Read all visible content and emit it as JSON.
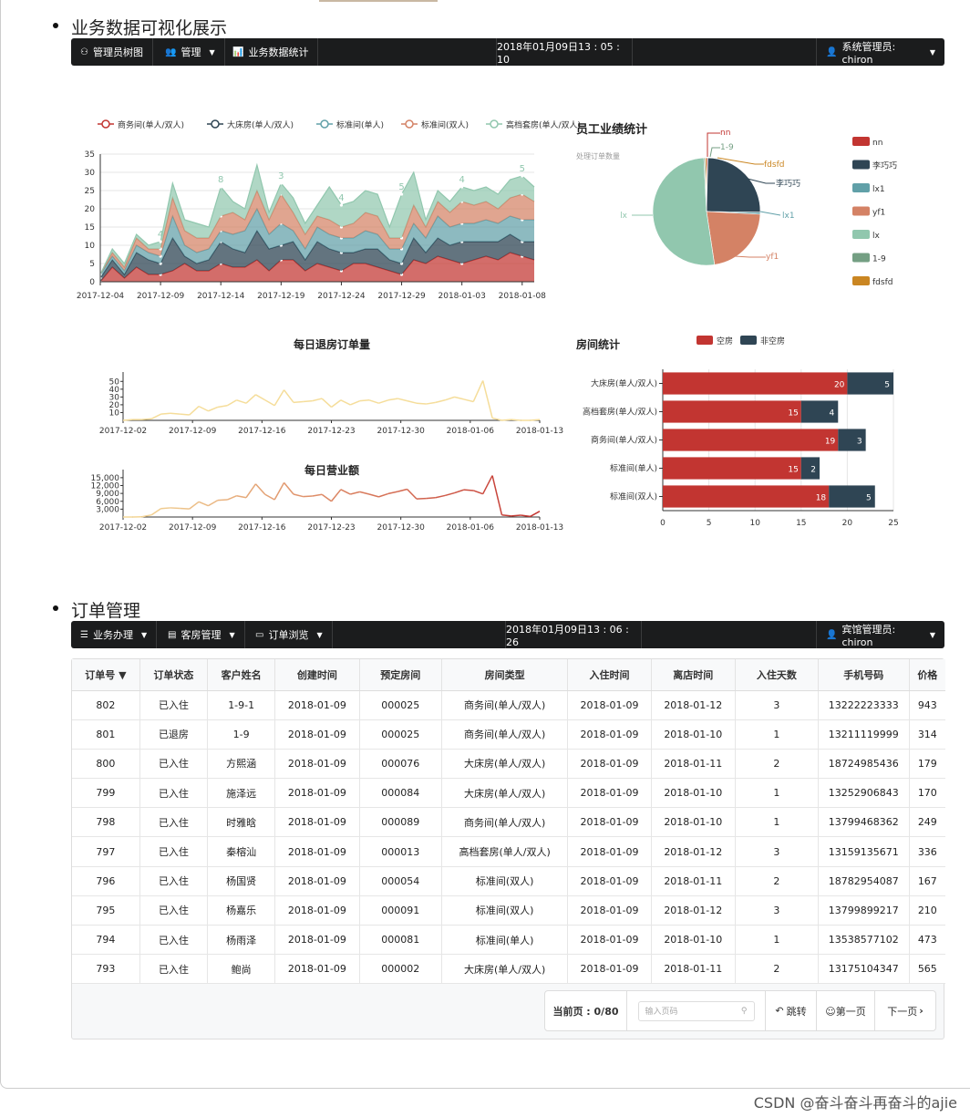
{
  "section1": {
    "title": "业务数据可视化展示"
  },
  "nav1": {
    "items": [
      "管理员树图",
      "管理",
      "业务数据统计"
    ],
    "datetime": "2018年01月09日13 : 05 : 10",
    "user": "系统管理员: chiron"
  },
  "section2": {
    "title": "订单管理"
  },
  "nav2": {
    "items": [
      "业务办理",
      "客房管理",
      "订单浏览"
    ],
    "datetime": "2018年01月09日13 : 06 : 26",
    "user": "宾馆管理员: chiron"
  },
  "colors": {
    "red": "#c23531",
    "navy": "#2f4554",
    "teal": "#61a0a8",
    "salmon": "#d48265",
    "mint": "#91c7ae",
    "green": "#749f83",
    "orange": "#ca8622"
  },
  "chart_data": [
    {
      "type": "area",
      "title": "",
      "x": [
        "2017-12-04",
        "2017-12-05",
        "2017-12-06",
        "2017-12-07",
        "2017-12-08",
        "2017-12-09",
        "2017-12-10",
        "2017-12-11",
        "2017-12-12",
        "2017-12-13",
        "2017-12-14",
        "2017-12-15",
        "2017-12-16",
        "2017-12-17",
        "2017-12-18",
        "2017-12-19",
        "2017-12-20",
        "2017-12-21",
        "2017-12-22",
        "2017-12-23",
        "2017-12-24",
        "2017-12-25",
        "2017-12-26",
        "2017-12-27",
        "2017-12-28",
        "2017-12-29",
        "2017-12-30",
        "2017-12-31",
        "2018-01-01",
        "2018-01-02",
        "2018-01-03",
        "2018-01-04",
        "2018-01-05",
        "2018-01-06",
        "2018-01-07",
        "2018-01-08",
        "2018-01-09"
      ],
      "xticks": [
        "2017-12-04",
        "2017-12-09",
        "2017-12-14",
        "2017-12-19",
        "2017-12-24",
        "2017-12-29",
        "2018-01-03",
        "2018-01-08"
      ],
      "ylim": [
        0,
        35
      ],
      "yticks": [
        "0",
        "5",
        "10",
        "15",
        "20",
        "25",
        "30",
        "35"
      ],
      "stacked": true,
      "series": [
        {
          "name": "商务间(单人/双人)",
          "values": [
            0,
            4,
            1,
            4,
            2,
            2,
            3,
            5,
            3,
            3,
            5,
            4,
            4,
            6,
            3,
            6,
            6,
            3,
            5,
            4,
            3,
            5,
            5,
            4,
            3,
            2,
            6,
            5,
            7,
            6,
            5,
            6,
            7,
            6,
            8,
            7,
            6
          ]
        },
        {
          "name": "大床房(单人/双人)",
          "values": [
            1,
            2,
            1,
            4,
            4,
            3,
            9,
            2,
            2,
            3,
            6,
            5,
            4,
            8,
            6,
            4,
            5,
            3,
            6,
            5,
            5,
            3,
            4,
            5,
            3,
            3,
            6,
            3,
            5,
            4,
            6,
            5,
            4,
            5,
            5,
            4,
            5
          ]
        },
        {
          "name": "标准间(单人)",
          "values": [
            1,
            1,
            1,
            2,
            2,
            2,
            6,
            3,
            3,
            3,
            3,
            4,
            6,
            6,
            4,
            6,
            3,
            3,
            4,
            4,
            4,
            4,
            5,
            4,
            3,
            4,
            4,
            4,
            6,
            5,
            5,
            5,
            6,
            5,
            5,
            6,
            6
          ]
        },
        {
          "name": "标准间(双人)",
          "values": [
            0,
            1,
            1,
            2,
            1,
            2,
            5,
            4,
            4,
            3,
            4,
            6,
            3,
            5,
            4,
            8,
            5,
            4,
            3,
            4,
            3,
            4,
            5,
            5,
            3,
            3,
            5,
            3,
            4,
            4,
            6,
            5,
            5,
            4,
            5,
            7,
            5
          ]
        },
        {
          "name": "高档套房(单人/双人)",
          "values": [
            0,
            1,
            1,
            1,
            1,
            2,
            4,
            3,
            4,
            3,
            8,
            3,
            3,
            7,
            2,
            3,
            4,
            3,
            3,
            9,
            6,
            6,
            6,
            6,
            3,
            12,
            9,
            2,
            3,
            3,
            4,
            4,
            4,
            4,
            5,
            5,
            4
          ]
        }
      ],
      "labels": [
        "4",
        "8",
        "3",
        "4",
        "5",
        "4",
        "5"
      ]
    },
    {
      "type": "pie",
      "title": "员工业绩统计",
      "subtitle": "处理订单数量",
      "slices": [
        {
          "name": "nn",
          "value": 0.4
        },
        {
          "name": "李巧巧",
          "value": 25
        },
        {
          "name": "lx1",
          "value": 0.6
        },
        {
          "name": "yf1",
          "value": 22
        },
        {
          "name": "lx",
          "value": 52
        },
        {
          "name": "1-9",
          "value": 0.4
        },
        {
          "name": "fdsfd",
          "value": 0.4
        }
      ]
    },
    {
      "type": "line",
      "title": "每日退房订单量",
      "xticks": [
        "2017-12-02",
        "2017-12-09",
        "2017-12-16",
        "2017-12-23",
        "2017-12-30",
        "2018-01-06",
        "2018-01-13"
      ],
      "yticks": [
        "10",
        "20",
        "30",
        "40",
        "50"
      ],
      "ylim": [
        0,
        55
      ],
      "values": [
        0,
        1,
        1,
        2,
        8,
        9,
        8,
        7,
        18,
        12,
        17,
        19,
        26,
        22,
        33,
        26,
        19,
        39,
        23,
        24,
        25,
        28,
        17,
        26,
        20,
        25,
        26,
        22,
        26,
        28,
        25,
        22,
        21,
        23,
        26,
        30,
        27,
        24,
        51,
        3,
        0,
        1,
        0,
        0,
        1
      ]
    },
    {
      "type": "line",
      "title": "每日营业额",
      "xticks": [
        "2017-12-02",
        "2017-12-09",
        "2017-12-16",
        "2017-12-23",
        "2017-12-30",
        "2018-01-06",
        "2018-01-13"
      ],
      "yticks": [
        "3,000",
        "6,000",
        "9,000",
        "12,000",
        "15,000"
      ],
      "ylim": [
        0,
        16000
      ],
      "values": [
        0,
        0,
        100,
        800,
        3200,
        3500,
        3300,
        3100,
        5800,
        4300,
        6400,
        6600,
        8100,
        7400,
        12600,
        8600,
        6600,
        13100,
        8700,
        7800,
        8000,
        8600,
        6000,
        10500,
        8700,
        9600,
        8700,
        7700,
        8900,
        9700,
        10600,
        6900,
        7100,
        7400,
        8200,
        9200,
        10400,
        10100,
        8800,
        15800,
        800,
        400,
        700,
        200,
        2200
      ]
    },
    {
      "type": "bar",
      "title": "房间统计",
      "orientation": "horizontal",
      "stacked": true,
      "categories": [
        "大床房(单人/双人)",
        "高档套房(单人/双人)",
        "商务间(单人/双人)",
        "标准间(单人)",
        "标准间(双人)"
      ],
      "series": [
        {
          "name": "空房",
          "values": [
            20,
            15,
            19,
            15,
            18
          ]
        },
        {
          "name": "非空房",
          "values": [
            5,
            4,
            3,
            2,
            5
          ]
        }
      ],
      "xticks": [
        "0",
        "5",
        "10",
        "15",
        "20",
        "25"
      ],
      "xlim": [
        0,
        25
      ]
    }
  ],
  "table": {
    "headers": [
      "订单号",
      "订单状态",
      "客户姓名",
      "创建时间",
      "预定房间",
      "房间类型",
      "入住时间",
      "离店时间",
      "入住天数",
      "手机号码",
      "价格"
    ],
    "sort_indicator": "▼",
    "rows": [
      [
        "802",
        "已入住",
        "1-9-1",
        "2018-01-09",
        "000025",
        "商务间(单人/双人)",
        "2018-01-09",
        "2018-01-12",
        "3",
        "13222223333",
        "943"
      ],
      [
        "801",
        "已退房",
        "1-9",
        "2018-01-09",
        "000025",
        "商务间(单人/双人)",
        "2018-01-09",
        "2018-01-10",
        "1",
        "13211119999",
        "314"
      ],
      [
        "800",
        "已入住",
        "方熙涵",
        "2018-01-09",
        "000076",
        "大床房(单人/双人)",
        "2018-01-09",
        "2018-01-11",
        "2",
        "18724985436",
        "179"
      ],
      [
        "799",
        "已入住",
        "施泽远",
        "2018-01-09",
        "000084",
        "大床房(单人/双人)",
        "2018-01-09",
        "2018-01-10",
        "1",
        "13252906843",
        "170"
      ],
      [
        "798",
        "已入住",
        "时雅晗",
        "2018-01-09",
        "000089",
        "商务间(单人/双人)",
        "2018-01-09",
        "2018-01-10",
        "1",
        "13799468362",
        "249"
      ],
      [
        "797",
        "已入住",
        "秦榕汕",
        "2018-01-09",
        "000013",
        "高档套房(单人/双人)",
        "2018-01-09",
        "2018-01-12",
        "3",
        "13159135671",
        "336"
      ],
      [
        "796",
        "已入住",
        "杨国贤",
        "2018-01-09",
        "000054",
        "标准间(双人)",
        "2018-01-09",
        "2018-01-11",
        "2",
        "18782954087",
        "167"
      ],
      [
        "795",
        "已入住",
        "杨嘉乐",
        "2018-01-09",
        "000091",
        "标准间(双人)",
        "2018-01-09",
        "2018-01-12",
        "3",
        "13799899217",
        "210"
      ],
      [
        "794",
        "已入住",
        "杨雨泽",
        "2018-01-09",
        "000081",
        "标准间(单人)",
        "2018-01-09",
        "2018-01-10",
        "1",
        "13538577102",
        "473"
      ],
      [
        "793",
        "已入住",
        "鲍尚",
        "2018-01-09",
        "000002",
        "大床房(单人/双人)",
        "2018-01-09",
        "2018-01-11",
        "2",
        "13175104347",
        "565"
      ]
    ]
  },
  "pager": {
    "current": "当前页 : 0/80",
    "placeholder": "输入页码",
    "jump": "跳转",
    "first": "☺第一页",
    "next": "下一页"
  },
  "watermark": "CSDN @奋斗奋斗再奋斗的ajie"
}
